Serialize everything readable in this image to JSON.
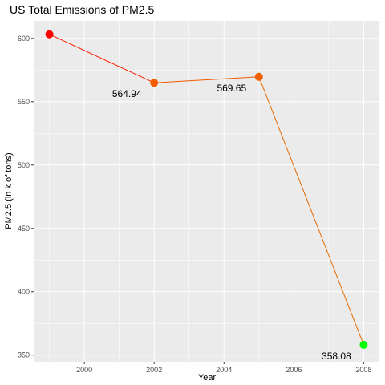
{
  "chart_data": {
    "type": "line",
    "title": "US Total Emissions of PM2.5",
    "xlabel": "Year",
    "ylabel": "PM2.5 (in k of tons)",
    "x": [
      1999,
      2002,
      2005,
      2008
    ],
    "y": [
      603.24,
      564.94,
      569.65,
      358.08
    ],
    "point_colors": [
      "#ff0000",
      "#f45c00",
      "#f06000",
      "#00ff00"
    ],
    "line_colors": [
      "#ff1e00",
      "#f05a00",
      "#e86a00"
    ],
    "data_labels": [
      {
        "x": 2002,
        "y": 564.94,
        "text": "564.94"
      },
      {
        "x": 2005,
        "y": 569.65,
        "text": "569.65"
      },
      {
        "x": 2008,
        "y": 358.08,
        "text": "358.08"
      }
    ],
    "xlim": [
      1998.55,
      2008.45
    ],
    "ylim": [
      344.74,
      613.83
    ],
    "x_ticks": [
      2000,
      2002,
      2004,
      2006,
      2008
    ],
    "y_ticks": [
      350,
      400,
      450,
      500,
      550,
      600
    ],
    "grid": true,
    "panel_background": "#ebebeb",
    "grid_color": "#ffffff"
  }
}
